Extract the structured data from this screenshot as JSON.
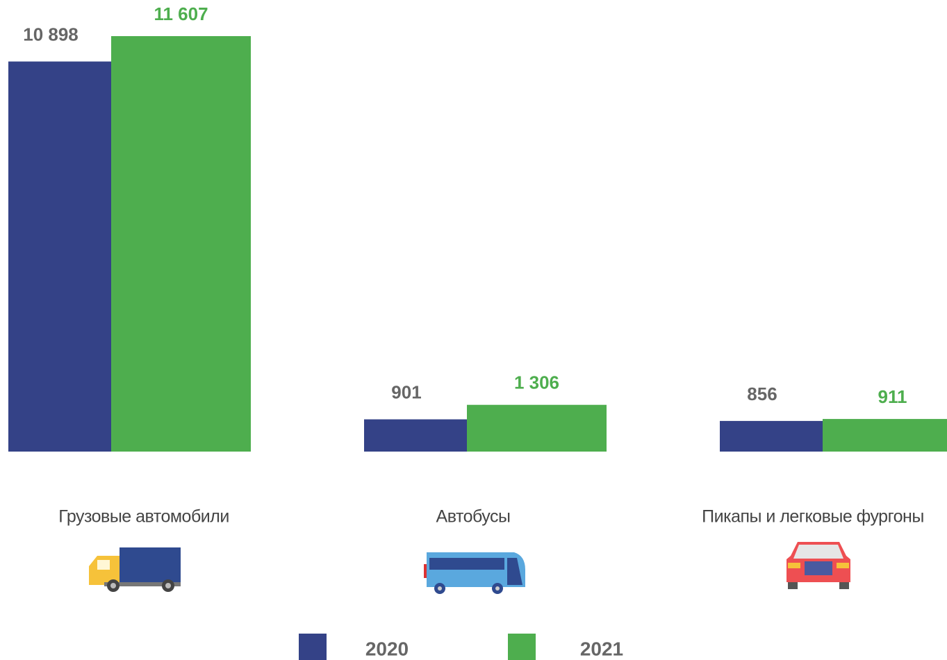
{
  "chart_data": {
    "type": "bar",
    "categories": [
      "Грузовые автомобили",
      "Автобусы",
      "Пикапы и легковые фургоны"
    ],
    "series": [
      {
        "name": "2020",
        "color": "#344287",
        "values": [
          10898,
          901,
          856
        ],
        "value_labels": [
          "10 898",
          "901",
          "856"
        ]
      },
      {
        "name": "2021",
        "color": "#4eae4e",
        "values": [
          11607,
          1306,
          911
        ],
        "value_labels": [
          "11 607",
          "1 306",
          "911"
        ]
      }
    ],
    "legend": "bottom"
  }
}
